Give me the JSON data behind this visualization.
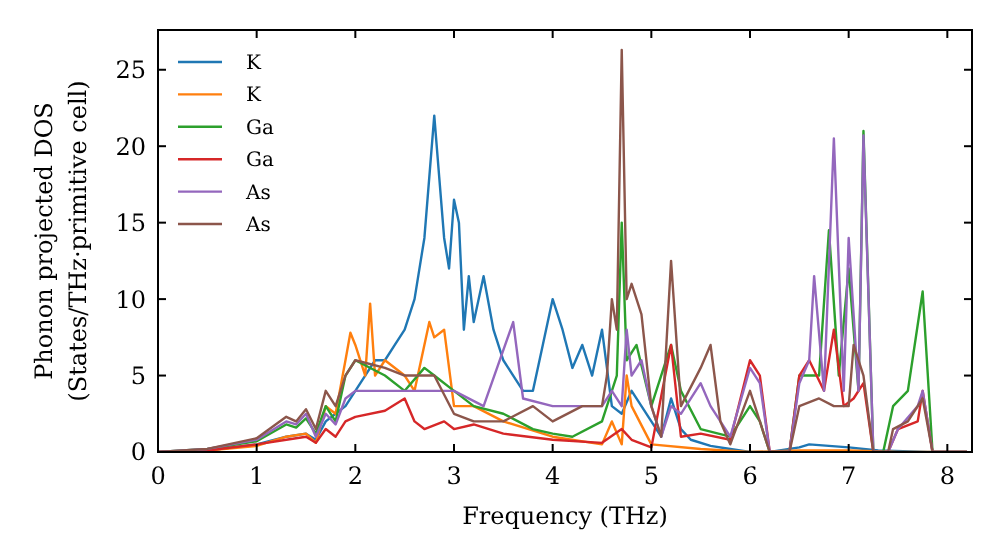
{
  "chart_data": {
    "type": "line",
    "xlabel": "Frequency (THz)",
    "ylabel": "Phonon projected DOS\n(States/THz·primitive cell)",
    "xlim": [
      0,
      8.25
    ],
    "ylim": [
      0,
      27.6
    ],
    "xticks": [
      0,
      1,
      2,
      3,
      4,
      5,
      6,
      7,
      8
    ],
    "yticks": [
      0,
      5,
      10,
      15,
      20,
      25
    ],
    "grid": false,
    "legend": "top left",
    "marker": "none",
    "line_style": "solid",
    "series": [
      {
        "name": "K",
        "color": "#1f77b4",
        "x": [
          0,
          0.5,
          1,
          1.3,
          1.5,
          1.6,
          1.7,
          1.8,
          1.9,
          2,
          2.1,
          2.2,
          2.3,
          2.4,
          2.5,
          2.6,
          2.7,
          2.8,
          2.85,
          2.9,
          2.95,
          3,
          3.05,
          3.1,
          3.15,
          3.2,
          3.3,
          3.4,
          3.5,
          3.6,
          3.7,
          3.8,
          3.9,
          4,
          4.1,
          4.2,
          4.3,
          4.4,
          4.5,
          4.6,
          4.7,
          4.8,
          4.9,
          5,
          5.1,
          5.2,
          5.3,
          5.4,
          5.6,
          5.8,
          6,
          6.2,
          6.5,
          6.6,
          7,
          7.3,
          7.8,
          8.2
        ],
        "values": [
          0,
          0.1,
          0.5,
          1,
          1.2,
          0.8,
          2,
          2.5,
          3,
          4,
          5,
          6,
          6,
          7,
          8,
          10,
          14,
          22,
          18,
          14,
          12,
          16.5,
          15,
          8,
          11.5,
          8.5,
          11.5,
          8,
          6,
          5,
          4,
          4,
          7,
          10,
          8,
          5.5,
          7,
          5,
          8,
          3,
          2.5,
          4,
          3,
          2,
          1,
          3.5,
          1.5,
          0.8,
          0.4,
          0.2,
          0,
          0,
          0.3,
          0.5,
          0.3,
          0.1,
          0,
          0
        ]
      },
      {
        "name": "K",
        "color": "#ff7f0e",
        "x": [
          0,
          0.5,
          1,
          1.3,
          1.5,
          1.6,
          1.7,
          1.8,
          1.9,
          1.95,
          2,
          2.1,
          2.15,
          2.2,
          2.3,
          2.5,
          2.6,
          2.75,
          2.8,
          2.9,
          3,
          3.2,
          3.5,
          4,
          4.5,
          4.6,
          4.7,
          4.75,
          4.8,
          5,
          5.5,
          6,
          6.5,
          7,
          7.5,
          8.2
        ],
        "values": [
          0,
          0.1,
          0.4,
          1,
          1.2,
          0.6,
          3,
          2.5,
          6,
          7.8,
          7,
          5,
          9.7,
          5,
          6,
          5,
          4,
          8.5,
          7.5,
          8,
          3,
          3,
          2,
          1,
          0.5,
          2,
          0.5,
          5,
          3,
          0.5,
          0.2,
          0,
          0.1,
          0.1,
          0,
          0
        ]
      },
      {
        "name": "Ga",
        "color": "#2ca02c",
        "x": [
          0,
          0.5,
          1,
          1.3,
          1.4,
          1.5,
          1.6,
          1.7,
          1.8,
          1.9,
          2,
          2.3,
          2.5,
          2.7,
          2.8,
          3,
          3.2,
          3.5,
          3.8,
          4,
          4.2,
          4.5,
          4.65,
          4.7,
          4.75,
          4.85,
          5,
          5.2,
          5.3,
          5.5,
          5.8,
          6,
          6.1,
          6.2,
          6.4,
          6.5,
          6.7,
          6.8,
          6.9,
          7,
          7.1,
          7.15,
          7.25,
          7.35,
          7.45,
          7.6,
          7.75,
          7.85,
          8.2
        ],
        "values": [
          0,
          0.2,
          0.7,
          1.8,
          1.6,
          2.2,
          1.2,
          3,
          2,
          5,
          6,
          5,
          4,
          5.5,
          5,
          4,
          3,
          2.5,
          1.5,
          1.2,
          1,
          2,
          5,
          15,
          6,
          7,
          3,
          7,
          4,
          1.5,
          1,
          3,
          2,
          0,
          0,
          5,
          5,
          14.5,
          5,
          12,
          4,
          21,
          0,
          0,
          3,
          4,
          10.5,
          0,
          0
        ]
      },
      {
        "name": "Ga",
        "color": "#d62728",
        "x": [
          0,
          0.5,
          1,
          1.3,
          1.5,
          1.6,
          1.7,
          1.8,
          1.9,
          2,
          2.3,
          2.5,
          2.6,
          2.7,
          2.9,
          3,
          3.2,
          3.5,
          4,
          4.5,
          4.7,
          4.8,
          5,
          5.2,
          5.3,
          5.5,
          5.8,
          6,
          6.1,
          6.2,
          6.4,
          6.5,
          6.6,
          6.75,
          6.85,
          6.95,
          7.05,
          7.15,
          7.25,
          7.4,
          7.5,
          7.7,
          7.75,
          7.85,
          8.2
        ],
        "values": [
          0,
          0.1,
          0.5,
          0.8,
          1,
          0.6,
          1.5,
          1,
          2,
          2.3,
          2.7,
          3.5,
          2,
          1.5,
          2,
          1.5,
          1.8,
          1.2,
          0.8,
          0.6,
          1.5,
          0.8,
          0.3,
          7,
          1,
          1.2,
          0.8,
          6,
          5,
          0,
          0,
          5,
          6,
          4,
          8,
          3,
          3.5,
          4.5,
          0,
          0,
          1.5,
          2,
          4,
          0,
          0
        ]
      },
      {
        "name": "As",
        "color": "#9467bd",
        "x": [
          0,
          0.5,
          1,
          1.3,
          1.4,
          1.5,
          1.6,
          1.7,
          1.8,
          1.9,
          2,
          2.5,
          3,
          3.3,
          3.6,
          3.7,
          4,
          4.5,
          4.6,
          4.7,
          4.75,
          4.8,
          4.9,
          5,
          5.1,
          5.2,
          5.3,
          5.5,
          5.6,
          5.8,
          6,
          6.1,
          6.2,
          6.4,
          6.5,
          6.6,
          6.65,
          6.75,
          6.85,
          6.95,
          7,
          7.1,
          7.15,
          7.25,
          7.4,
          7.5,
          7.7,
          7.75,
          7.85,
          8.2
        ],
        "values": [
          0,
          0.2,
          0.8,
          2,
          1.8,
          2.5,
          1,
          2.5,
          1.8,
          3.5,
          4,
          4,
          4,
          3,
          8.5,
          3.5,
          3,
          3,
          4,
          3,
          8,
          5,
          6,
          3,
          1,
          3,
          2.5,
          4.5,
          3,
          1,
          5.5,
          4.5,
          0,
          0,
          4.5,
          6,
          11.5,
          4,
          20.5,
          4,
          14,
          4,
          20.7,
          0,
          0,
          1.5,
          3,
          4,
          0,
          0
        ]
      },
      {
        "name": "As",
        "color": "#8c564b",
        "x": [
          0,
          0.5,
          1,
          1.3,
          1.4,
          1.5,
          1.6,
          1.7,
          1.8,
          1.9,
          2,
          2.3,
          2.5,
          2.8,
          3,
          3.2,
          3.5,
          3.8,
          4,
          4.3,
          4.5,
          4.55,
          4.6,
          4.65,
          4.7,
          4.75,
          4.8,
          4.9,
          5,
          5.1,
          5.2,
          5.3,
          5.5,
          5.6,
          5.7,
          5.8,
          6,
          6.1,
          6.2,
          6.4,
          6.5,
          6.7,
          6.85,
          7,
          7.05,
          7.15,
          7.25,
          7.4,
          7.45,
          7.6,
          7.75,
          7.85,
          8.2
        ],
        "values": [
          0,
          0.2,
          0.9,
          2.3,
          2,
          2.8,
          1.5,
          4,
          3,
          5,
          6,
          5.5,
          5,
          5,
          2.5,
          2,
          2,
          3,
          2,
          3,
          3,
          5,
          10,
          8,
          26.3,
          10,
          11,
          9,
          3,
          1,
          12.5,
          3,
          5.5,
          7,
          2,
          0.5,
          4,
          2,
          0,
          0,
          3,
          3.5,
          3,
          3,
          7,
          5,
          0,
          0,
          1.5,
          2,
          3.5,
          0,
          0
        ]
      }
    ]
  }
}
